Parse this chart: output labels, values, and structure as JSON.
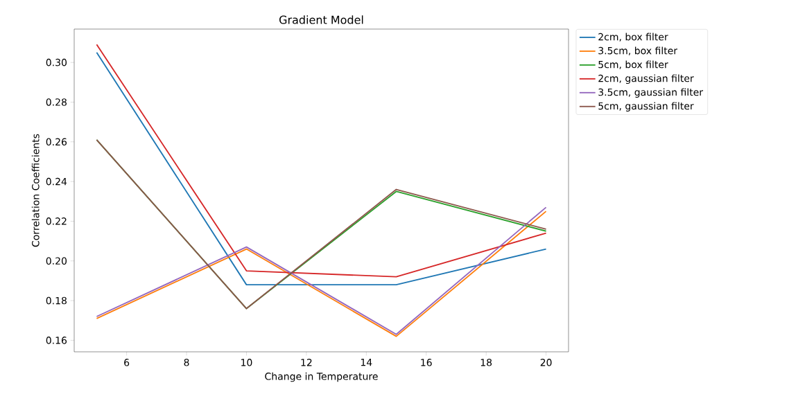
{
  "chart_data": {
    "type": "line",
    "title": "Gradient Model",
    "xlabel": "Change in Temperature",
    "ylabel": "Correlation Coefficients",
    "x": [
      5,
      10,
      15,
      20
    ],
    "series": [
      {
        "name": "2cm, box filter",
        "color": "#1f77b4",
        "values": [
          0.305,
          0.188,
          0.188,
          0.206
        ]
      },
      {
        "name": "3.5cm, box filter",
        "color": "#ff7f0e",
        "values": [
          0.171,
          0.206,
          0.162,
          0.225
        ]
      },
      {
        "name": "5cm, box filter",
        "color": "#2ca02c",
        "values": [
          0.261,
          0.176,
          0.235,
          0.215
        ]
      },
      {
        "name": "2cm, gaussian filter",
        "color": "#d62728",
        "values": [
          0.309,
          0.195,
          0.192,
          0.214
        ]
      },
      {
        "name": "3.5cm, gaussian filter",
        "color": "#9467bd",
        "values": [
          0.172,
          0.207,
          0.163,
          0.227
        ]
      },
      {
        "name": "5cm, gaussian filter",
        "color": "#8c564b",
        "values": [
          0.261,
          0.176,
          0.236,
          0.216
        ]
      }
    ],
    "xlim": [
      4.25,
      20.75
    ],
    "xticks": [
      6,
      8,
      10,
      12,
      14,
      16,
      18,
      20
    ],
    "ylim": [
      0.1542,
      0.3168
    ],
    "yticks": [
      0.16,
      0.18,
      {
        "value": 0.2,
        "label": "0.20"
      },
      0.22,
      0.24,
      0.26,
      0.28,
      {
        "value": 0.3,
        "label": "0.30"
      }
    ],
    "grid": false,
    "legend": "top right",
    "marker": "none",
    "line_style": "solid"
  }
}
